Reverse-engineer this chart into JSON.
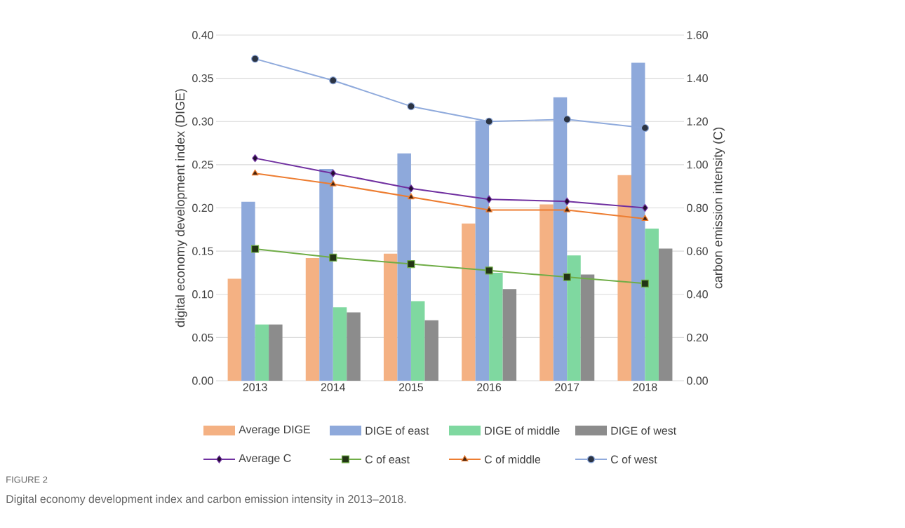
{
  "chart_data": {
    "type": "bar",
    "categories": [
      "2013",
      "2014",
      "2015",
      "2016",
      "2017",
      "2018"
    ],
    "series": [
      {
        "name": "Average DIGE",
        "color": "#f4b183",
        "values": [
          0.118,
          0.142,
          0.147,
          0.182,
          0.204,
          0.238
        ]
      },
      {
        "name": "DIGE of east",
        "color": "#8ea9db",
        "values": [
          0.207,
          0.245,
          0.263,
          0.301,
          0.328,
          0.368
        ]
      },
      {
        "name": "DIGE of middle",
        "color": "#7fd8a0",
        "values": [
          0.065,
          0.085,
          0.092,
          0.125,
          0.145,
          0.176
        ]
      },
      {
        "name": "DIGE of west",
        "color": "#8c8c8c",
        "values": [
          0.065,
          0.079,
          0.07,
          0.106,
          0.123,
          0.153
        ]
      },
      {
        "name": "Average C",
        "type": "line",
        "axis": "y2",
        "marker": "diamond",
        "color": "#7030a0",
        "values": [
          1.03,
          0.96,
          0.89,
          0.84,
          0.83,
          0.8
        ]
      },
      {
        "name": "C of east",
        "type": "line",
        "axis": "y2",
        "marker": "square",
        "color": "#70ad47",
        "values": [
          0.61,
          0.57,
          0.54,
          0.51,
          0.48,
          0.45
        ]
      },
      {
        "name": "C of middle",
        "type": "line",
        "axis": "y2",
        "marker": "triangle",
        "color": "#ed7d31",
        "values": [
          0.96,
          0.91,
          0.85,
          0.79,
          0.79,
          0.75
        ]
      },
      {
        "name": "C of west",
        "type": "line",
        "axis": "y2",
        "marker": "circle",
        "color": "#8faadc",
        "values": [
          1.49,
          1.39,
          1.27,
          1.2,
          1.21,
          1.17
        ]
      }
    ],
    "ylim": [
      0,
      0.4
    ],
    "yticks": [
      {
        "value": 0,
        "label": "0.00"
      },
      {
        "value": 0.05,
        "label": "0.05"
      },
      {
        "value": 0.1,
        "label": "0.10"
      },
      {
        "value": 0.15,
        "label": "0.15"
      },
      {
        "value": 0.2,
        "label": "0.20"
      },
      {
        "value": 0.25,
        "label": "0.25"
      },
      {
        "value": 0.3,
        "label": "0.30"
      },
      {
        "value": 0.35,
        "label": "0.35"
      },
      {
        "value": 0.4,
        "label": "0.40"
      }
    ],
    "y2lim": [
      0,
      1.6
    ],
    "y2ticks": [
      {
        "value": 0,
        "label": "0.00"
      },
      {
        "value": 0.2,
        "label": "0.20"
      },
      {
        "value": 0.4,
        "label": "0.40"
      },
      {
        "value": 0.6,
        "label": "0.60"
      },
      {
        "value": 0.8,
        "label": "0.80"
      },
      {
        "value": 1.0,
        "label": "1.00"
      },
      {
        "value": 1.2,
        "label": "1.20"
      },
      {
        "value": 1.4,
        "label": "1.40"
      },
      {
        "value": 1.6,
        "label": "1.60"
      }
    ],
    "ylabel": "digital economy development index (DIGE)",
    "y2label": "carbon emission intensity (C)",
    "grid": "y",
    "legend": "bottom",
    "annotations": [
      "FIGURE 2",
      "Digital economy development index and carbon emission intensity in 2013–2018."
    ]
  }
}
